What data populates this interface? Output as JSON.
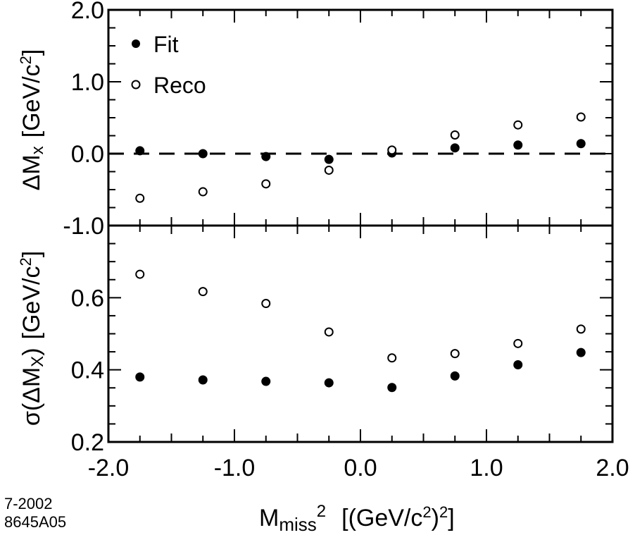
{
  "chart_data": {
    "type": "scatter",
    "x": [
      -1.75,
      -1.25,
      -0.75,
      -0.25,
      0.25,
      0.75,
      1.25,
      1.75
    ],
    "xlim": [
      -2.0,
      2.0
    ],
    "x_ticks": [
      "-2.0",
      "-1.0",
      "0.0",
      "1.0",
      "2.0"
    ],
    "xlabel": {
      "main": "M",
      "sub": "miss",
      "sup": "2",
      "unit_prefix": "[(GeV/c",
      "unit_sup": "2",
      "unit_mid": ")",
      "unit_sup2": "2",
      "unit_suffix": "]"
    },
    "grid": false,
    "panels": [
      {
        "name": "top",
        "ylim": [
          -1.0,
          2.0
        ],
        "y_ticks": [
          "-1.0",
          "0.0",
          "1.0",
          "2.0"
        ],
        "ylabel": {
          "main": "ΔM",
          "sub": "x",
          "unit_prefix": "[GeV/c",
          "unit_sup": "2",
          "unit_suffix": "]"
        },
        "reference_line": 0.0,
        "legend_placement": "top-left",
        "series": [
          {
            "name": "Fit",
            "marker": "filled",
            "values": [
              0.04,
              0.0,
              -0.04,
              -0.08,
              0.01,
              0.08,
              0.12,
              0.14
            ]
          },
          {
            "name": "Reco",
            "marker": "open",
            "values": [
              -0.62,
              -0.53,
              -0.42,
              -0.23,
              0.05,
              0.26,
              0.4,
              0.51
            ]
          }
        ]
      },
      {
        "name": "bottom",
        "ylim": [
          0.2,
          0.8
        ],
        "y_ticks": [
          "0.2",
          "0.4",
          "0.6"
        ],
        "ylabel": {
          "main": "σ(ΔM",
          "sub": "X",
          "close": ")",
          "unit_prefix": "[GeV/c",
          "unit_sup": "2",
          "unit_suffix": "]"
        },
        "series": [
          {
            "name": "Fit",
            "marker": "filled",
            "values": [
              0.38,
              0.372,
              0.368,
              0.364,
              0.351,
              0.383,
              0.414,
              0.448
            ]
          },
          {
            "name": "Reco",
            "marker": "open",
            "values": [
              0.665,
              0.617,
              0.584,
              0.505,
              0.433,
              0.445,
              0.473,
              0.513
            ]
          }
        ]
      }
    ]
  },
  "note": {
    "line1": "7-2002",
    "line2": "8645A05"
  }
}
